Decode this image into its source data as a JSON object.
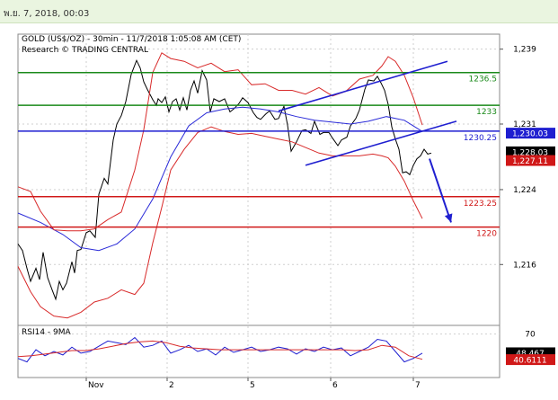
{
  "header": {
    "datetime": "พ.ย. 7, 2018, 00:03"
  },
  "chart_data": [
    {
      "type": "line",
      "title": "GOLD (US$/OZ) - 30min - 11/7/2018 1:05:08 AM (CET)",
      "subtitle": "Research © TRADING CENTRAL",
      "x_ticks": [
        "Nov",
        "2",
        "5",
        "6",
        "7"
      ],
      "y_ticks": [
        1216,
        1224,
        1231,
        1239
      ],
      "ylim": [
        1209.5,
        1240.6
      ],
      "grid": true,
      "levels": [
        {
          "label": "1236.5",
          "value": 1236.5,
          "color": "#1a8a1a"
        },
        {
          "label": "1233",
          "value": 1233.0,
          "color": "#1a8a1a"
        },
        {
          "label": "1230.25",
          "value": 1230.25,
          "color": "#1f1fd0"
        },
        {
          "label": "1223.25",
          "value": 1223.25,
          "color": "#d01818"
        },
        {
          "label": "1220",
          "value": 1220.0,
          "color": "#d01818"
        }
      ],
      "price_tags": [
        {
          "label": "1,230.03",
          "value": 1230.03,
          "color": "#1f1fd0"
        },
        {
          "label": "1,228.03",
          "value": 1228.03,
          "color": "#000000"
        },
        {
          "label": "1,227.11",
          "value": 1227.11,
          "color": "#d01818"
        }
      ],
      "series": [
        {
          "color": "#000000",
          "x": [
            0,
            5,
            10,
            14,
            20,
            24,
            28,
            33,
            38,
            42,
            46,
            50,
            54,
            60,
            63,
            66,
            70,
            76,
            80,
            86,
            90,
            96,
            100,
            106,
            110,
            115,
            120,
            126,
            132,
            136,
            140,
            144,
            150,
            154,
            156,
            160,
            164,
            168,
            172,
            176,
            180,
            184,
            188,
            192,
            196,
            200,
            205,
            210,
            214,
            218,
            224,
            230,
            236,
            240,
            246,
            250,
            256,
            262,
            266,
            270,
            276,
            280,
            286,
            290,
            296,
            300,
            304,
            310,
            316,
            320,
            326,
            330,
            336,
            340,
            346,
            350,
            356,
            360,
            366,
            370,
            376,
            380,
            386,
            390,
            396,
            400,
            404,
            408,
            412,
            416,
            420,
            424,
            428,
            432,
            436,
            440,
            444,
            448,
            452,
            456,
            460
          ],
          "y": [
            1218.2,
            1217.5,
            1215.6,
            1214.2,
            1215.6,
            1214.4,
            1217.3,
            1214.6,
            1213.3,
            1212.3,
            1214.2,
            1213.3,
            1214.0,
            1216.3,
            1215.1,
            1217.5,
            1217.6,
            1219.4,
            1219.6,
            1218.9,
            1223.5,
            1225.2,
            1224.6,
            1229.3,
            1231.0,
            1231.9,
            1233.4,
            1236.3,
            1237.8,
            1237.0,
            1235.5,
            1234.7,
            1233.6,
            1233.0,
            1233.7,
            1233.3,
            1233.9,
            1232.3,
            1233.4,
            1233.7,
            1232.5,
            1233.8,
            1232.5,
            1234.6,
            1235.6,
            1234.3,
            1236.7,
            1235.7,
            1232.3,
            1233.7,
            1233.4,
            1233.7,
            1232.3,
            1232.6,
            1233.2,
            1233.8,
            1233.3,
            1232.2,
            1231.7,
            1231.5,
            1232.1,
            1232.4,
            1231.5,
            1231.6,
            1232.9,
            1230.9,
            1228.1,
            1229.1,
            1230.3,
            1230.4,
            1230.0,
            1231.3,
            1229.9,
            1230.1,
            1230.1,
            1229.5,
            1228.7,
            1229.3,
            1229.6,
            1230.8,
            1231.6,
            1232.5,
            1234.7,
            1235.7,
            1235.6,
            1236.1,
            1235.4,
            1234.6,
            1233.1,
            1230.7,
            1229.4,
            1228.3,
            1225.8,
            1225.9,
            1225.6,
            1226.6,
            1227.3,
            1227.6,
            1228.3,
            1227.8,
            1227.9
          ]
        },
        {
          "color": "#2a2ad8",
          "x": [
            0,
            25,
            50,
            70,
            90,
            110,
            130,
            150,
            170,
            190,
            210,
            230,
            250,
            270,
            290,
            310,
            330,
            350,
            370,
            390,
            410,
            430,
            450
          ],
          "y": [
            1221.5,
            1220.5,
            1219.2,
            1217.8,
            1217.5,
            1218.2,
            1219.8,
            1223.0,
            1227.5,
            1230.8,
            1232.2,
            1232.6,
            1232.8,
            1232.6,
            1232.3,
            1231.8,
            1231.4,
            1231.2,
            1231.0,
            1231.3,
            1231.8,
            1231.4,
            1230.2
          ]
        },
        {
          "color": "#d82a2a",
          "x": [
            0,
            14,
            25,
            40,
            55,
            70,
            85,
            100,
            115,
            130,
            140,
            150,
            160,
            170,
            185,
            200,
            215,
            230,
            245,
            260,
            275,
            290,
            305,
            320,
            335,
            350,
            365,
            380,
            395,
            405,
            412,
            420,
            430,
            440,
            450
          ],
          "y": [
            1224.3,
            1223.8,
            1221.7,
            1219.7,
            1219.6,
            1219.6,
            1219.8,
            1220.8,
            1221.6,
            1226.1,
            1230.4,
            1236.5,
            1238.6,
            1238.0,
            1237.7,
            1237.0,
            1237.5,
            1236.6,
            1236.8,
            1235.2,
            1235.3,
            1234.6,
            1234.6,
            1234.2,
            1234.9,
            1234.0,
            1234.5,
            1235.8,
            1236.2,
            1237.2,
            1238.2,
            1237.7,
            1236.2,
            1233.8,
            1230.9
          ]
        },
        {
          "color": "#d82a2a",
          "x": [
            0,
            14,
            25,
            40,
            55,
            70,
            85,
            100,
            115,
            130,
            140,
            150,
            160,
            170,
            185,
            200,
            215,
            230,
            245,
            260,
            275,
            290,
            305,
            320,
            335,
            350,
            365,
            380,
            395,
            405,
            412,
            420,
            430,
            440,
            450
          ],
          "y": [
            1215.8,
            1213.1,
            1211.5,
            1210.5,
            1210.3,
            1210.9,
            1212.0,
            1212.4,
            1213.3,
            1212.8,
            1214.0,
            1218.3,
            1222.1,
            1226.1,
            1228.3,
            1230.1,
            1230.7,
            1230.2,
            1229.9,
            1230.0,
            1229.7,
            1229.4,
            1229.1,
            1228.5,
            1227.9,
            1227.6,
            1227.6,
            1227.6,
            1227.8,
            1227.6,
            1227.4,
            1226.5,
            1224.9,
            1222.8,
            1220.9
          ]
        }
      ],
      "trendlines": [
        {
          "x1": 290,
          "y1": 1232.4,
          "x2": 478,
          "y2": 1237.7,
          "color": "#1f1fd0"
        },
        {
          "x1": 320,
          "y1": 1226.6,
          "x2": 488,
          "y2": 1231.3,
          "color": "#1f1fd0"
        }
      ],
      "arrow": {
        "x1": 458,
        "y1": 1227.3,
        "x2": 482,
        "y2": 1220.5,
        "color": "#1f1fd0"
      }
    },
    {
      "type": "line",
      "title": "RSI14 - 9MA",
      "y_ticks": [
        70
      ],
      "ylim": [
        20,
        80
      ],
      "price_tags": [
        {
          "label": "48.467",
          "value": 48.467,
          "color": "#000000"
        },
        {
          "label": "40.6111",
          "value": 40.6111,
          "color": "#d01818"
        }
      ],
      "series": [
        {
          "color": "#1f1fd0",
          "x": [
            0,
            10,
            20,
            30,
            40,
            50,
            60,
            70,
            80,
            90,
            100,
            110,
            120,
            130,
            140,
            150,
            160,
            170,
            180,
            190,
            200,
            210,
            220,
            230,
            240,
            250,
            260,
            270,
            280,
            290,
            300,
            310,
            320,
            330,
            340,
            350,
            360,
            370,
            380,
            390,
            400,
            410,
            420,
            430,
            440,
            450
          ],
          "y": [
            42,
            38,
            52,
            45,
            50,
            46,
            55,
            48,
            50,
            56,
            62,
            60,
            58,
            66,
            55,
            57,
            62,
            48,
            52,
            57,
            50,
            53,
            46,
            55,
            49,
            52,
            55,
            50,
            52,
            55,
            53,
            47,
            53,
            50,
            55,
            52,
            54,
            45,
            50,
            55,
            64,
            62,
            50,
            38,
            42,
            48
          ]
        },
        {
          "color": "#d82a2a",
          "x": [
            0,
            15,
            30,
            45,
            60,
            75,
            90,
            105,
            120,
            135,
            150,
            165,
            180,
            195,
            210,
            225,
            240,
            255,
            270,
            285,
            300,
            315,
            330,
            345,
            360,
            375,
            390,
            405,
            420,
            435,
            450
          ],
          "y": [
            44,
            45,
            47,
            49,
            51,
            51,
            53,
            56,
            59,
            61,
            62,
            60,
            56,
            54,
            53,
            52,
            52,
            52,
            52,
            52,
            52,
            52,
            52,
            52,
            52,
            51,
            52,
            57,
            55,
            45,
            41
          ]
        }
      ]
    }
  ]
}
